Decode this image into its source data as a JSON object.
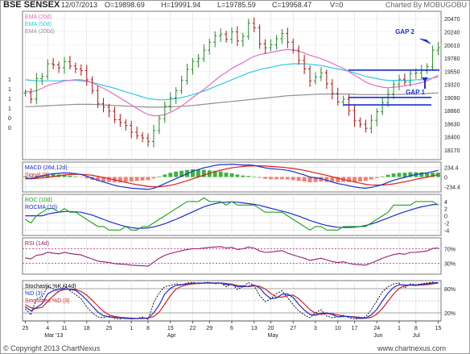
{
  "header": {
    "symbol": "BSE SENSEX",
    "date": "12/07/2013",
    "open": "O=19898.69",
    "high": "H=19991.94",
    "low": "L=19785.59",
    "close": "C=19958.47",
    "volume": "V=0",
    "charted_by": "Charted By MOBUGOBU"
  },
  "footer": {
    "copyright": "© Copyright 2013 ChartNexus",
    "site": "www.chartnexus.com"
  },
  "colors": {
    "ema20": "#e070c8",
    "ema50": "#30c8e8",
    "ema200": "#909090",
    "candle": "#1e8c1e",
    "candle_down": "#b01010",
    "macd": "#1a2fd0",
    "signal": "#d82020",
    "hist_pos": "#40b040",
    "hist_neg": "#f08070",
    "roc": "#20a020",
    "rocma": "#1a2fd0",
    "rsi": "#902070",
    "stoch_k": "#000000",
    "stoch_d": "#1a2fd0",
    "stoch_sd": "#d82020",
    "annot": "#1a2fd0"
  },
  "chart_data": [
    {
      "type": "candlestick",
      "title": "BSE SENSEX",
      "legend": [
        "EMA (20d)",
        "EMA (50d)",
        "EMA (200d)"
      ],
      "yticks": [
        "20470",
        "20240",
        "20010",
        "19780",
        "19550",
        "19320",
        "19090",
        "18860",
        "18630",
        "18400",
        "18170"
      ],
      "ylim": [
        18000,
        20600
      ],
      "x_ticks": [
        "25",
        "4",
        "11",
        "18",
        "25",
        "1",
        "8",
        "15",
        "22",
        "29",
        "6",
        "13",
        "20",
        "27",
        "3",
        "10",
        "17",
        "24",
        "1",
        "8",
        "15"
      ],
      "x_month_labels": [
        "Mar '13",
        "Apr",
        "May",
        "Jun",
        "Jul"
      ],
      "left_axis_labels": [
        "1",
        "1",
        "1",
        "1",
        "0",
        "0"
      ],
      "annotations": [
        "GAP 2",
        "GAP 1"
      ],
      "close": [
        19170,
        19060,
        19420,
        19460,
        19680,
        19660,
        19610,
        19720,
        19640,
        19590,
        19560,
        19400,
        19210,
        18980,
        18920,
        18850,
        18700,
        18650,
        18600,
        18480,
        18420,
        18380,
        18320,
        18510,
        18720,
        18940,
        19080,
        19210,
        19390,
        19580,
        19720,
        19770,
        19920,
        20060,
        20170,
        20200,
        20110,
        20240,
        20080,
        20160,
        20390,
        20310,
        20030,
        19960,
        20010,
        20120,
        20210,
        20060,
        19920,
        19740,
        19590,
        19380,
        19450,
        19520,
        19330,
        19160,
        19010,
        19060,
        18860,
        18680,
        18620,
        18550,
        18690,
        18840,
        19000,
        19150,
        19320,
        19410,
        19360,
        19510,
        19520,
        19560,
        19630,
        19920,
        19960
      ],
      "ema20": [
        19200,
        19190,
        19210,
        19250,
        19300,
        19330,
        19350,
        19380,
        19390,
        19400,
        19400,
        19380,
        19350,
        19300,
        19250,
        19200,
        19140,
        19080,
        19020,
        18960,
        18900,
        18840,
        18790,
        18770,
        18770,
        18790,
        18830,
        18880,
        18940,
        19010,
        19090,
        19160,
        19230,
        19310,
        19390,
        19470,
        19530,
        19600,
        19650,
        19700,
        19760,
        19810,
        19840,
        19860,
        19880,
        19900,
        19920,
        19930,
        19920,
        19900,
        19870,
        19830,
        19800,
        19770,
        19730,
        19690,
        19640,
        19600,
        19540,
        19480,
        19420,
        19360,
        19320,
        19290,
        19270,
        19260,
        19270,
        19280,
        19290,
        19310,
        19330,
        19350,
        19380,
        19430,
        19480
      ],
      "ema50": [
        19400,
        19390,
        19380,
        19380,
        19380,
        19380,
        19380,
        19390,
        19390,
        19390,
        19380,
        19370,
        19350,
        19330,
        19300,
        19280,
        19250,
        19220,
        19190,
        19160,
        19130,
        19100,
        19070,
        19060,
        19050,
        19050,
        19060,
        19070,
        19090,
        19110,
        19140,
        19170,
        19200,
        19240,
        19280,
        19320,
        19360,
        19400,
        19440,
        19480,
        19520,
        19550,
        19580,
        19600,
        19620,
        19640,
        19660,
        19670,
        19680,
        19680,
        19680,
        19670,
        19660,
        19650,
        19630,
        19610,
        19590,
        19570,
        19550,
        19520,
        19490,
        19460,
        19440,
        19420,
        19400,
        19390,
        19390,
        19390,
        19390,
        19390,
        19400,
        19400,
        19410,
        19430,
        19450
      ],
      "ema200": [
        18930,
        18930,
        18935,
        18940,
        18945,
        18950,
        18955,
        18960,
        18965,
        18970,
        18970,
        18970,
        18970,
        18965,
        18960,
        18955,
        18950,
        18945,
        18940,
        18935,
        18930,
        18925,
        18920,
        18920,
        18920,
        18920,
        18925,
        18930,
        18935,
        18940,
        18950,
        18960,
        18970,
        18980,
        18990,
        19000,
        19010,
        19020,
        19030,
        19040,
        19050,
        19060,
        19070,
        19080,
        19090,
        19100,
        19110,
        19120,
        19125,
        19130,
        19135,
        19140,
        19145,
        19150,
        19150,
        19150,
        19150,
        19150,
        19150,
        19145,
        19140,
        19140,
        19140,
        19140,
        19140,
        19140,
        19140,
        19145,
        19145,
        19150,
        19150,
        19155,
        19160,
        19165,
        19170
      ]
    },
    {
      "type": "line",
      "title": "MACD (26d,12d)",
      "series": [
        {
          "name": "MACD (26d,12d)",
          "values": [
            -20,
            -40,
            -10,
            20,
            60,
            80,
            90,
            100,
            95,
            80,
            60,
            20,
            -30,
            -80,
            -120,
            -160,
            -200,
            -230,
            -250,
            -270,
            -280,
            -290,
            -300,
            -270,
            -220,
            -160,
            -100,
            -40,
            20,
            80,
            140,
            180,
            220,
            250,
            280,
            300,
            300,
            310,
            300,
            290,
            290,
            280,
            250,
            220,
            200,
            190,
            180,
            160,
            130,
            90,
            50,
            0,
            -20,
            -40,
            -80,
            -120,
            -160,
            -180,
            -210,
            -240,
            -260,
            -270,
            -250,
            -220,
            -180,
            -130,
            -80,
            -40,
            -10,
            30,
            60,
            80,
            100,
            130,
            160
          ]
        },
        {
          "name": "Signal (9)",
          "values": [
            -40,
            -40,
            -35,
            -25,
            -10,
            10,
            30,
            50,
            60,
            65,
            65,
            55,
            40,
            15,
            -10,
            -40,
            -70,
            -100,
            -130,
            -160,
            -185,
            -205,
            -225,
            -235,
            -235,
            -220,
            -200,
            -170,
            -130,
            -90,
            -45,
            0,
            45,
            90,
            130,
            165,
            195,
            220,
            240,
            255,
            265,
            270,
            270,
            265,
            255,
            245,
            235,
            220,
            205,
            185,
            160,
            130,
            100,
            70,
            40,
            5,
            -30,
            -60,
            -90,
            -120,
            -150,
            -175,
            -190,
            -195,
            -195,
            -185,
            -165,
            -140,
            -115,
            -85,
            -55,
            -30,
            -5,
            25,
            55
          ]
        }
      ],
      "yticks": [
        "234.4",
        "0",
        "-234.4"
      ],
      "ylim": [
        -360,
        360
      ]
    },
    {
      "type": "line",
      "title": "ROC (10d)",
      "series": [
        {
          "name": "ROC (10d)",
          "values": [
            -1,
            -2,
            0,
            1,
            2,
            2,
            1,
            2,
            1,
            1,
            0,
            -1,
            -2,
            -3,
            -3,
            -4,
            -4,
            -4,
            -3,
            -4,
            -4,
            -3,
            -3,
            -2,
            -1,
            0,
            1,
            2,
            3,
            4,
            4,
            4,
            5,
            4,
            4,
            4,
            3,
            4,
            3,
            3,
            3,
            3,
            2,
            1,
            1,
            1,
            1,
            0,
            -1,
            -2,
            -3,
            -4,
            -3,
            -3,
            -4,
            -4,
            -4,
            -3,
            -3,
            -3,
            -3,
            -3,
            -2,
            -1,
            0,
            1,
            3,
            3,
            3,
            3,
            4,
            4,
            4,
            4,
            3
          ]
        },
        {
          "name": "ROCMA (10)",
          "values": [
            0,
            0,
            0,
            0,
            0.5,
            0.8,
            1,
            1.2,
            1.2,
            1.1,
            1,
            0.6,
            0.2,
            -0.4,
            -1,
            -1.6,
            -2.1,
            -2.6,
            -3,
            -3.3,
            -3.5,
            -3.5,
            -3.4,
            -3.1,
            -2.7,
            -2.2,
            -1.6,
            -1,
            -0.3,
            0.4,
            1.1,
            1.8,
            2.5,
            3,
            3.4,
            3.7,
            3.8,
            3.9,
            3.8,
            3.6,
            3.4,
            3.2,
            2.9,
            2.5,
            2.1,
            1.7,
            1.3,
            0.9,
            0.4,
            -0.1,
            -0.7,
            -1.3,
            -1.8,
            -2.3,
            -2.7,
            -3,
            -3.2,
            -3.3,
            -3.3,
            -3.2,
            -3,
            -2.7,
            -2.3,
            -1.8,
            -1.2,
            -0.6,
            0,
            0.6,
            1.1,
            1.6,
            2.1,
            2.5,
            2.8,
            3.1,
            3.2
          ]
        }
      ],
      "yticks": [
        "4",
        "2",
        "0",
        "-2",
        "-4"
      ],
      "ylim": [
        -5.5,
        6
      ]
    },
    {
      "type": "line",
      "title": "RSI (14d)",
      "series": [
        {
          "name": "RSI (14d)",
          "values": [
            45,
            42,
            52,
            54,
            60,
            58,
            56,
            60,
            57,
            55,
            53,
            47,
            42,
            36,
            34,
            32,
            29,
            28,
            27,
            25,
            24,
            23,
            22,
            33,
            44,
            52,
            57,
            61,
            65,
            68,
            70,
            70,
            72,
            74,
            75,
            76,
            72,
            74,
            68,
            70,
            75,
            72,
            64,
            60,
            61,
            63,
            65,
            58,
            53,
            48,
            44,
            38,
            41,
            44,
            39,
            35,
            32,
            34,
            30,
            27,
            26,
            25,
            31,
            37,
            44,
            49,
            54,
            57,
            55,
            60,
            60,
            62,
            64,
            71,
            72
          ]
        }
      ],
      "yticks": [
        "70%",
        "30%"
      ],
      "ylim": [
        0,
        100
      ]
    },
    {
      "type": "line",
      "title": "Stochastic %K (14d)",
      "series": [
        {
          "name": "Stochastic %K (14d)",
          "values": [
            30,
            15,
            55,
            60,
            85,
            80,
            72,
            88,
            75,
            65,
            55,
            35,
            20,
            10,
            8,
            12,
            6,
            5,
            8,
            5,
            6,
            10,
            4,
            45,
            70,
            85,
            88,
            92,
            90,
            94,
            96,
            92,
            95,
            96,
            92,
            94,
            85,
            92,
            78,
            85,
            95,
            88,
            62,
            48,
            55,
            68,
            75,
            58,
            40,
            25,
            15,
            8,
            20,
            28,
            12,
            8,
            10,
            14,
            8,
            5,
            6,
            10,
            28,
            50,
            72,
            85,
            92,
            94,
            82,
            92,
            90,
            92,
            94,
            96,
            94
          ]
        },
        {
          "name": "%D (3)",
          "values": [
            35,
            25,
            33,
            43,
            67,
            75,
            79,
            80,
            78,
            76,
            65,
            52,
            37,
            22,
            13,
            10,
            9,
            8,
            6,
            6,
            6,
            7,
            7,
            20,
            40,
            67,
            81,
            88,
            90,
            92,
            93,
            94,
            94,
            94,
            94,
            94,
            90,
            90,
            85,
            85,
            86,
            89,
            82,
            66,
            55,
            57,
            66,
            67,
            58,
            41,
            27,
            16,
            14,
            19,
            20,
            16,
            10,
            11,
            11,
            9,
            6,
            7,
            15,
            29,
            50,
            69,
            83,
            90,
            89,
            89,
            88,
            91,
            92,
            94,
            95
          ]
        },
        {
          "name": "Smoothed %D (3)",
          "values": [
            40,
            33,
            31,
            34,
            48,
            62,
            74,
            78,
            79,
            78,
            73,
            64,
            51,
            37,
            24,
            15,
            11,
            9,
            8,
            7,
            6,
            6,
            7,
            11,
            22,
            42,
            63,
            79,
            86,
            90,
            92,
            93,
            94,
            94,
            94,
            94,
            93,
            91,
            88,
            87,
            85,
            87,
            86,
            79,
            68,
            59,
            59,
            63,
            64,
            55,
            42,
            28,
            19,
            16,
            18,
            18,
            15,
            12,
            11,
            10,
            9,
            7,
            9,
            17,
            31,
            49,
            67,
            81,
            87,
            89,
            89,
            89,
            90,
            92,
            94
          ]
        }
      ],
      "yticks": [
        "80%",
        "20%"
      ],
      "ylim": [
        0,
        100
      ]
    }
  ]
}
